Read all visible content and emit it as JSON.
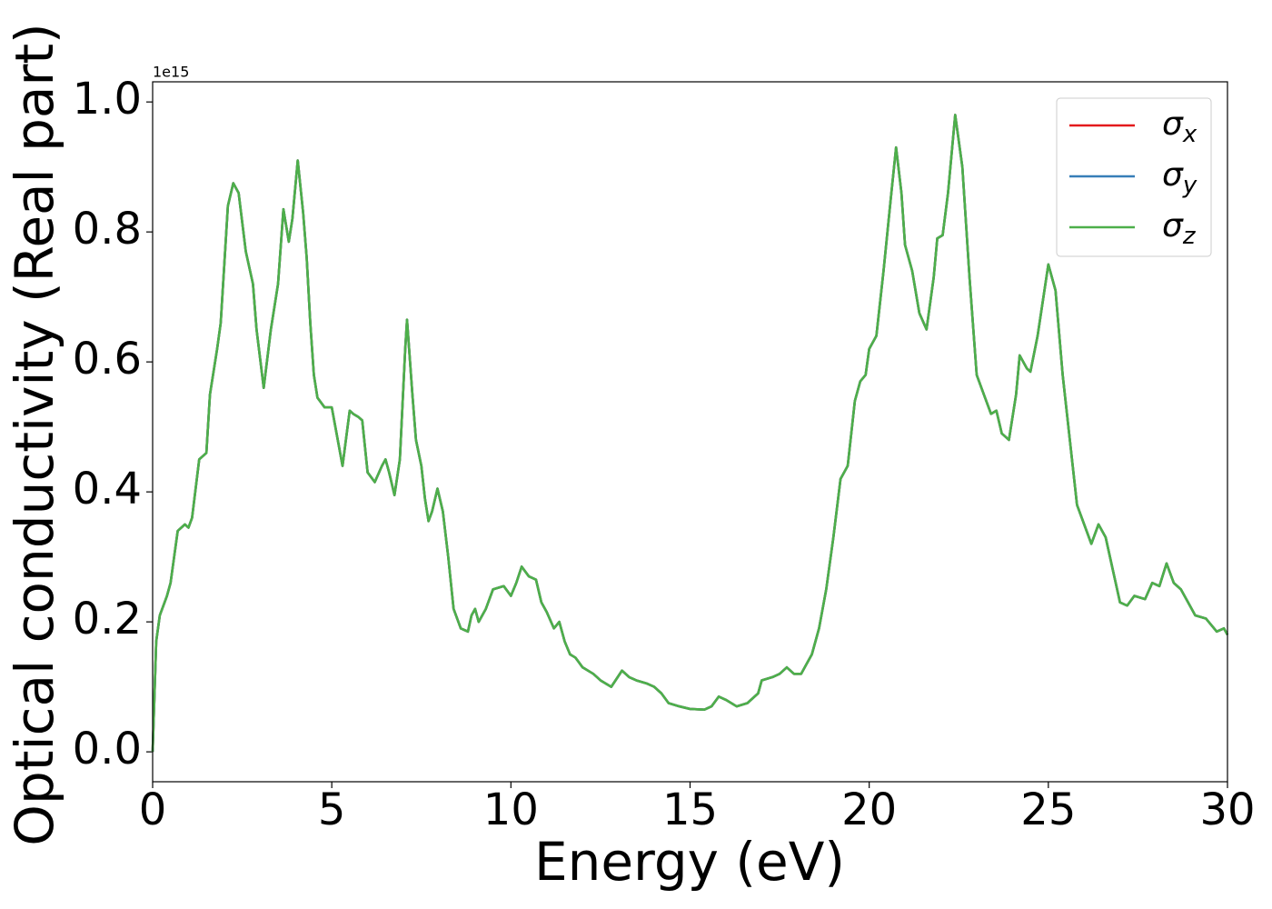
{
  "chart_data": {
    "type": "line",
    "xlabel": "Energy (eV)",
    "ylabel": "Optical conductivity (Real part)",
    "offset_text": "1e15",
    "x": [
      0,
      0.1,
      0.2,
      0.4,
      0.5,
      0.6,
      0.7,
      0.9,
      1.0,
      1.1,
      1.3,
      1.4,
      1.5,
      1.6,
      1.8,
      1.9,
      2.0,
      2.1,
      2.25,
      2.4,
      2.6,
      2.8,
      2.9,
      3.1,
      3.3,
      3.5,
      3.65,
      3.8,
      3.9,
      4.05,
      4.2,
      4.3,
      4.4,
      4.5,
      4.6,
      4.8,
      5.0,
      5.1,
      5.3,
      5.5,
      5.6,
      5.75,
      5.85,
      6.0,
      6.2,
      6.4,
      6.5,
      6.6,
      6.75,
      6.9,
      7.05,
      7.1,
      7.25,
      7.35,
      7.5,
      7.6,
      7.7,
      7.8,
      7.95,
      8.1,
      8.25,
      8.4,
      8.6,
      8.8,
      8.9,
      9.0,
      9.1,
      9.3,
      9.5,
      9.8,
      10.0,
      10.15,
      10.3,
      10.5,
      10.7,
      10.85,
      11.0,
      11.2,
      11.35,
      11.5,
      11.65,
      11.8,
      12.0,
      12.3,
      12.5,
      12.8,
      13.1,
      13.3,
      13.5,
      13.8,
      14.0,
      14.2,
      14.4,
      14.7,
      15.0,
      15.4,
      15.6,
      15.8,
      16.0,
      16.3,
      16.6,
      16.9,
      17.0,
      17.3,
      17.5,
      17.7,
      17.9,
      18.1,
      18.4,
      18.6,
      18.8,
      19.0,
      19.2,
      19.4,
      19.6,
      19.75,
      19.9,
      20.0,
      20.2,
      20.4,
      20.6,
      20.75,
      20.9,
      21.0,
      21.2,
      21.4,
      21.6,
      21.8,
      21.9,
      22.05,
      22.2,
      22.4,
      22.6,
      22.8,
      23.0,
      23.2,
      23.4,
      23.55,
      23.7,
      23.9,
      24.1,
      24.2,
      24.4,
      24.5,
      24.7,
      25.0,
      25.2,
      25.4,
      25.6,
      25.8,
      26.0,
      26.2,
      26.4,
      26.6,
      26.8,
      27.0,
      27.2,
      27.4,
      27.7,
      27.9,
      28.1,
      28.3,
      28.5,
      28.7,
      28.9,
      29.1,
      29.4,
      29.7,
      29.9,
      30.0
    ],
    "series": [
      {
        "name": "σx",
        "color": "#e41a1c",
        "values": [
          0,
          0.17,
          0.21,
          0.24,
          0.26,
          0.3,
          0.34,
          0.35,
          0.345,
          0.36,
          0.45,
          0.455,
          0.46,
          0.55,
          0.62,
          0.66,
          0.75,
          0.84,
          0.875,
          0.86,
          0.77,
          0.72,
          0.65,
          0.56,
          0.65,
          0.72,
          0.835,
          0.785,
          0.82,
          0.91,
          0.83,
          0.76,
          0.66,
          0.58,
          0.545,
          0.53,
          0.53,
          0.5,
          0.44,
          0.525,
          0.52,
          0.515,
          0.51,
          0.43,
          0.415,
          0.44,
          0.45,
          0.43,
          0.395,
          0.45,
          0.62,
          0.665,
          0.55,
          0.48,
          0.44,
          0.39,
          0.355,
          0.37,
          0.405,
          0.37,
          0.3,
          0.22,
          0.19,
          0.185,
          0.21,
          0.22,
          0.2,
          0.22,
          0.25,
          0.255,
          0.24,
          0.26,
          0.285,
          0.27,
          0.265,
          0.23,
          0.215,
          0.19,
          0.2,
          0.17,
          0.15,
          0.145,
          0.13,
          0.12,
          0.11,
          0.1,
          0.125,
          0.115,
          0.11,
          0.105,
          0.1,
          0.09,
          0.075,
          0.07,
          0.066,
          0.065,
          0.07,
          0.085,
          0.08,
          0.07,
          0.075,
          0.09,
          0.11,
          0.115,
          0.12,
          0.13,
          0.12,
          0.12,
          0.15,
          0.19,
          0.25,
          0.33,
          0.42,
          0.44,
          0.54,
          0.57,
          0.58,
          0.62,
          0.64,
          0.74,
          0.85,
          0.93,
          0.86,
          0.78,
          0.74,
          0.675,
          0.65,
          0.73,
          0.79,
          0.795,
          0.86,
          0.98,
          0.9,
          0.73,
          0.58,
          0.55,
          0.52,
          0.525,
          0.49,
          0.48,
          0.55,
          0.61,
          0.59,
          0.585,
          0.64,
          0.75,
          0.71,
          0.58,
          0.48,
          0.38,
          0.35,
          0.32,
          0.35,
          0.33,
          0.28,
          0.23,
          0.225,
          0.24,
          0.235,
          0.26,
          0.255,
          0.29,
          0.26,
          0.25,
          0.23,
          0.21,
          0.205,
          0.185,
          0.19,
          0.18
        ]
      },
      {
        "name": "σy",
        "color": "#377eb8",
        "values": [
          0,
          0.17,
          0.21,
          0.24,
          0.26,
          0.3,
          0.34,
          0.35,
          0.345,
          0.36,
          0.45,
          0.455,
          0.46,
          0.55,
          0.62,
          0.66,
          0.75,
          0.84,
          0.875,
          0.86,
          0.77,
          0.72,
          0.65,
          0.56,
          0.65,
          0.72,
          0.835,
          0.785,
          0.82,
          0.91,
          0.83,
          0.76,
          0.66,
          0.58,
          0.545,
          0.53,
          0.53,
          0.5,
          0.44,
          0.525,
          0.52,
          0.515,
          0.51,
          0.43,
          0.415,
          0.44,
          0.45,
          0.43,
          0.395,
          0.45,
          0.62,
          0.665,
          0.55,
          0.48,
          0.44,
          0.39,
          0.355,
          0.37,
          0.405,
          0.37,
          0.3,
          0.22,
          0.19,
          0.185,
          0.21,
          0.22,
          0.2,
          0.22,
          0.25,
          0.255,
          0.24,
          0.26,
          0.285,
          0.27,
          0.265,
          0.23,
          0.215,
          0.19,
          0.2,
          0.17,
          0.15,
          0.145,
          0.13,
          0.12,
          0.11,
          0.1,
          0.125,
          0.115,
          0.11,
          0.105,
          0.1,
          0.09,
          0.075,
          0.07,
          0.066,
          0.065,
          0.07,
          0.085,
          0.08,
          0.07,
          0.075,
          0.09,
          0.11,
          0.115,
          0.12,
          0.13,
          0.12,
          0.12,
          0.15,
          0.19,
          0.25,
          0.33,
          0.42,
          0.44,
          0.54,
          0.57,
          0.58,
          0.62,
          0.64,
          0.74,
          0.85,
          0.93,
          0.86,
          0.78,
          0.74,
          0.675,
          0.65,
          0.73,
          0.79,
          0.795,
          0.86,
          0.98,
          0.9,
          0.73,
          0.58,
          0.55,
          0.52,
          0.525,
          0.49,
          0.48,
          0.55,
          0.61,
          0.59,
          0.585,
          0.64,
          0.75,
          0.71,
          0.58,
          0.48,
          0.38,
          0.35,
          0.32,
          0.35,
          0.33,
          0.28,
          0.23,
          0.225,
          0.24,
          0.235,
          0.26,
          0.255,
          0.29,
          0.26,
          0.25,
          0.23,
          0.21,
          0.205,
          0.185,
          0.19,
          0.18
        ]
      },
      {
        "name": "σz",
        "color": "#4daf4a",
        "values": [
          0,
          0.17,
          0.21,
          0.24,
          0.26,
          0.3,
          0.34,
          0.35,
          0.345,
          0.36,
          0.45,
          0.455,
          0.46,
          0.55,
          0.62,
          0.66,
          0.75,
          0.84,
          0.875,
          0.86,
          0.77,
          0.72,
          0.65,
          0.56,
          0.65,
          0.72,
          0.835,
          0.785,
          0.82,
          0.91,
          0.83,
          0.76,
          0.66,
          0.58,
          0.545,
          0.53,
          0.53,
          0.5,
          0.44,
          0.525,
          0.52,
          0.515,
          0.51,
          0.43,
          0.415,
          0.44,
          0.45,
          0.43,
          0.395,
          0.45,
          0.62,
          0.665,
          0.55,
          0.48,
          0.44,
          0.39,
          0.355,
          0.37,
          0.405,
          0.37,
          0.3,
          0.22,
          0.19,
          0.185,
          0.21,
          0.22,
          0.2,
          0.22,
          0.25,
          0.255,
          0.24,
          0.26,
          0.285,
          0.27,
          0.265,
          0.23,
          0.215,
          0.19,
          0.2,
          0.17,
          0.15,
          0.145,
          0.13,
          0.12,
          0.11,
          0.1,
          0.125,
          0.115,
          0.11,
          0.105,
          0.1,
          0.09,
          0.075,
          0.07,
          0.066,
          0.065,
          0.07,
          0.085,
          0.08,
          0.07,
          0.075,
          0.09,
          0.11,
          0.115,
          0.12,
          0.13,
          0.12,
          0.12,
          0.15,
          0.19,
          0.25,
          0.33,
          0.42,
          0.44,
          0.54,
          0.57,
          0.58,
          0.62,
          0.64,
          0.74,
          0.85,
          0.93,
          0.86,
          0.78,
          0.74,
          0.675,
          0.65,
          0.73,
          0.79,
          0.795,
          0.86,
          0.98,
          0.9,
          0.73,
          0.58,
          0.55,
          0.52,
          0.525,
          0.49,
          0.48,
          0.55,
          0.61,
          0.59,
          0.585,
          0.64,
          0.75,
          0.71,
          0.58,
          0.48,
          0.38,
          0.35,
          0.32,
          0.35,
          0.33,
          0.28,
          0.23,
          0.225,
          0.24,
          0.235,
          0.26,
          0.255,
          0.29,
          0.26,
          0.25,
          0.23,
          0.21,
          0.205,
          0.185,
          0.19,
          0.18
        ]
      }
    ],
    "xlim": [
      0,
      30
    ],
    "xticks": [
      0,
      5,
      10,
      15,
      20,
      25,
      30
    ],
    "ylim": [
      -0.046,
      1.031
    ],
    "yticks": [
      {
        "value": 0,
        "label": "0.0"
      },
      0.2,
      0.4,
      0.6,
      0.8,
      {
        "value": 1,
        "label": "1.0"
      }
    ],
    "legend": "upper right",
    "grid": false
  }
}
